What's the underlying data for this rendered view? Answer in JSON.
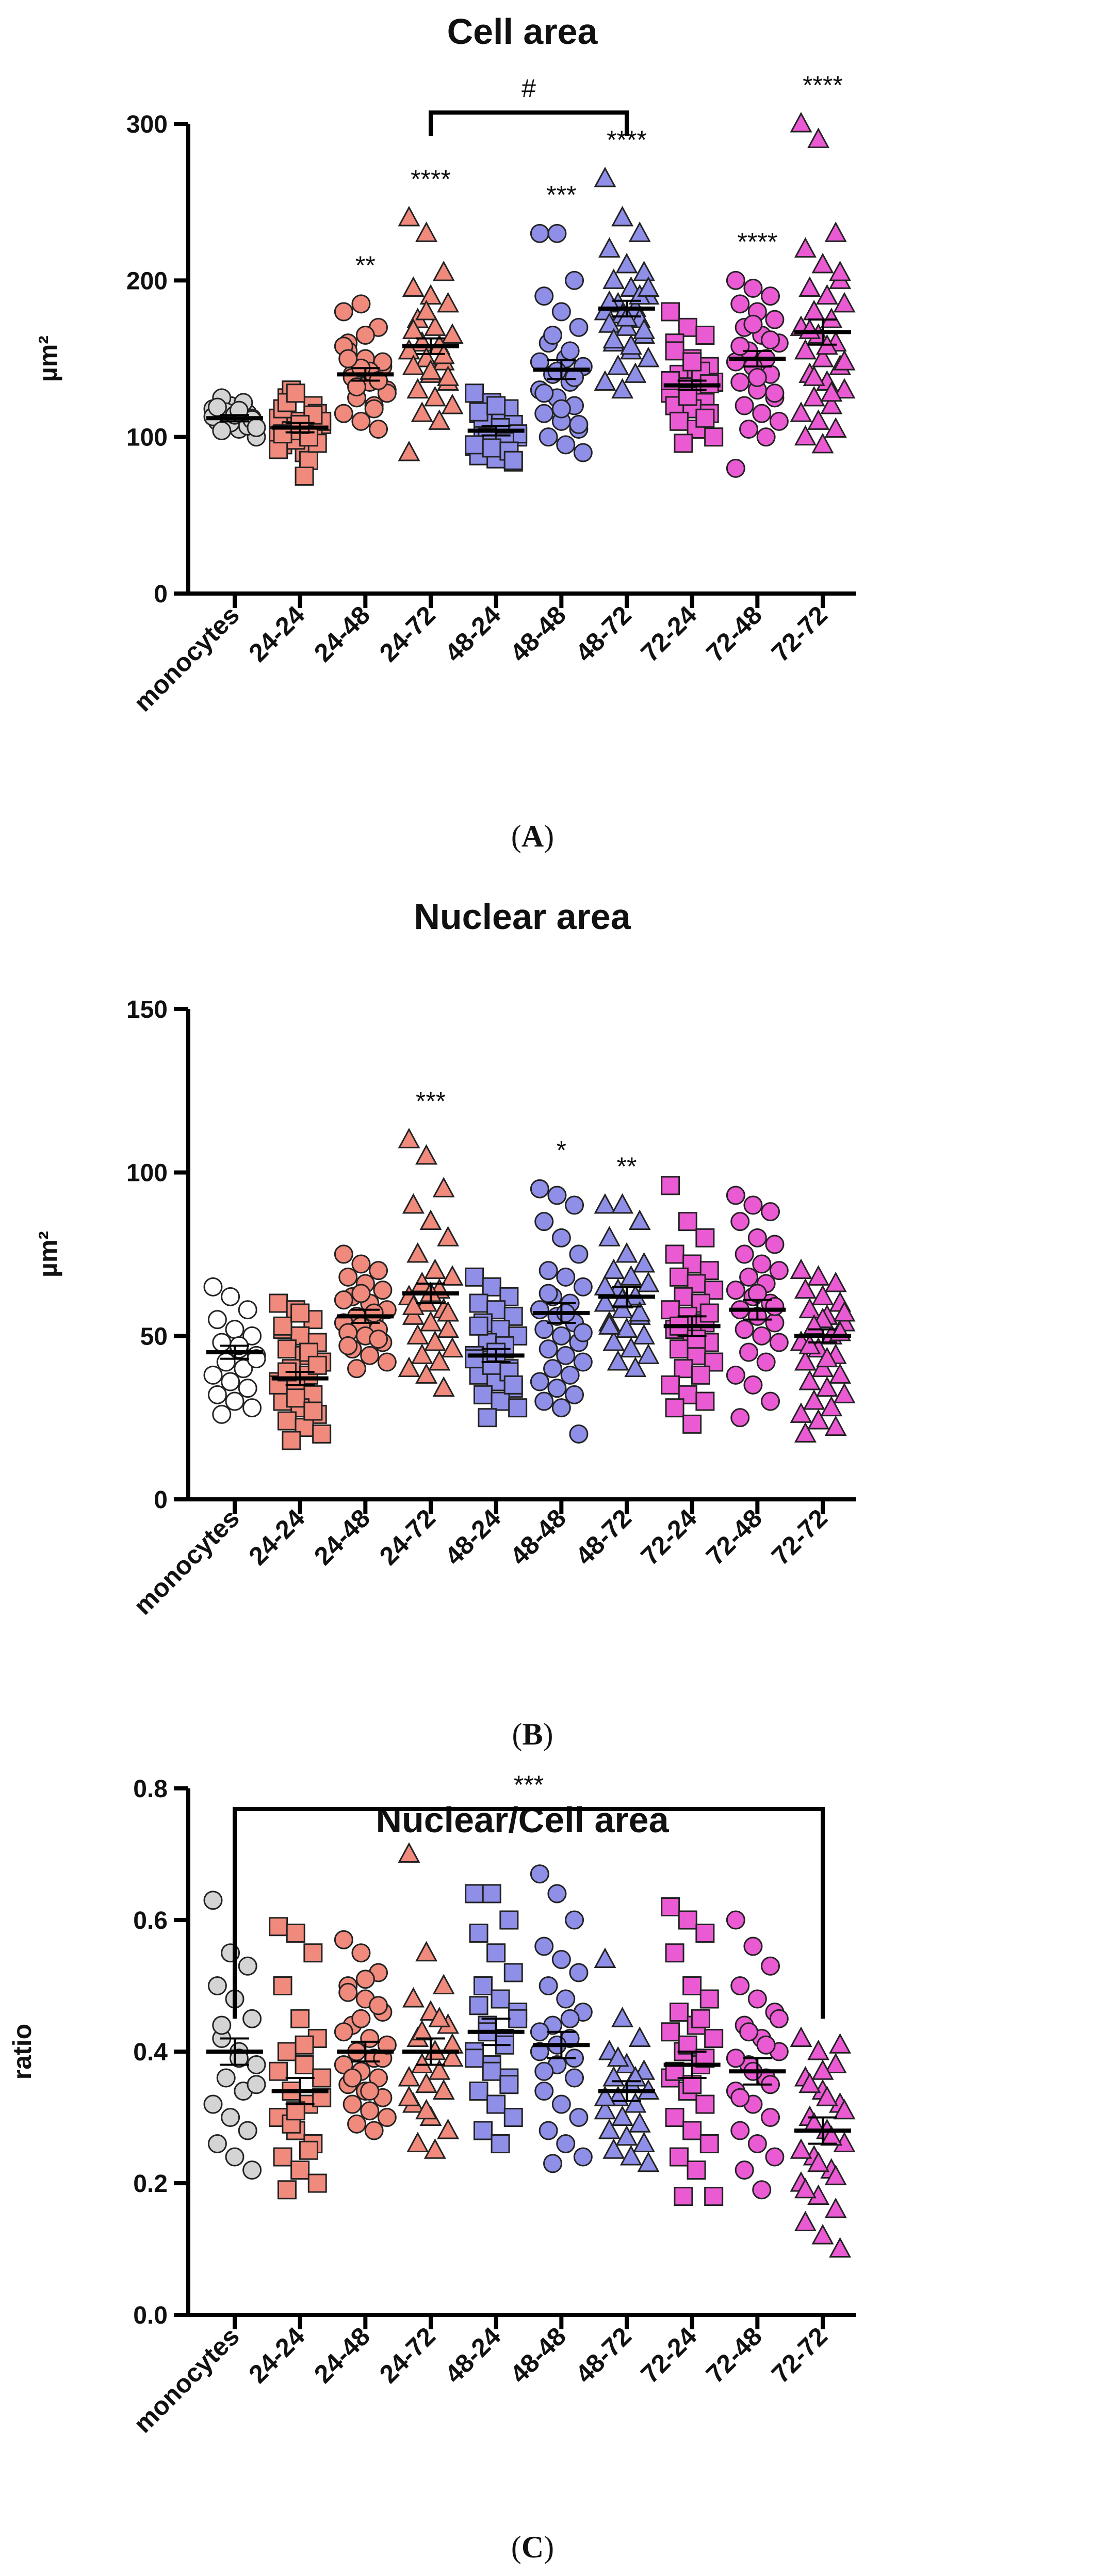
{
  "chart_data": [
    {
      "type": "scatter",
      "id": "A",
      "title": "Cell area",
      "ylabel": "µm²",
      "ylim": [
        0,
        300
      ],
      "yticks": [
        0,
        100,
        200,
        300
      ],
      "panel_label": "A",
      "categories": [
        "monocytes",
        "24-24",
        "24-48",
        "24-72",
        "48-24",
        "48-48",
        "48-72",
        "72-24",
        "72-48",
        "72-72"
      ],
      "colors": [
        "#d4d4d4",
        "#ef8a7c",
        "#ef8a7c",
        "#ef8a7c",
        "#8f8fe8",
        "#8f8fe8",
        "#8f8fe8",
        "#ea5ad2",
        "#ea5ad2",
        "#ea5ad2"
      ],
      "shapes": [
        "circle",
        "square",
        "circle",
        "triangle",
        "square",
        "circle",
        "triangle",
        "square",
        "circle",
        "triangle"
      ],
      "means": [
        112,
        106,
        140,
        158,
        104,
        143,
        182,
        133,
        150,
        167
      ],
      "sems": [
        2,
        3,
        4,
        5,
        3,
        6,
        5,
        3,
        5,
        8
      ],
      "significance": [
        "",
        "",
        "**",
        "****",
        "",
        "***",
        "****",
        "",
        "****",
        "****"
      ],
      "brackets": [
        {
          "from": 3,
          "to": 6,
          "label": "#"
        }
      ],
      "points": [
        [
          118,
          120,
          115,
          110,
          108,
          112,
          125,
          105,
          100,
          116,
          122,
          113,
          109,
          107,
          119,
          114,
          111,
          104,
          117,
          106
        ],
        [
          100,
          110,
          120,
          95,
          105,
          115,
          125,
          90,
          108,
          130,
          85,
          112,
          98,
          102,
          118,
          106,
          96,
          122,
          75,
          110,
          104,
          100,
          92,
          128,
          114,
          102,
          108
        ],
        [
          180,
          185,
          170,
          160,
          150,
          145,
          140,
          135,
          130,
          125,
          120,
          115,
          110,
          105,
          155,
          165,
          148,
          138,
          142,
          128,
          132,
          118,
          158,
          144,
          136,
          150
        ],
        [
          240,
          230,
          205,
          195,
          190,
          185,
          175,
          170,
          165,
          160,
          158,
          155,
          150,
          148,
          145,
          140,
          135,
          130,
          125,
          120,
          115,
          110,
          90,
          180,
          152,
          168,
          142,
          138
        ],
        [
          128,
          122,
          118,
          115,
          110,
          108,
          105,
          103,
          100,
          98,
          96,
          94,
          92,
          90,
          88,
          86,
          84,
          112,
          106,
          102,
          100,
          97,
          95,
          93,
          91,
          116,
          120,
          85
        ],
        [
          230,
          230,
          200,
          190,
          180,
          170,
          160,
          150,
          145,
          140,
          135,
          130,
          125,
          120,
          115,
          110,
          105,
          100,
          95,
          90,
          165,
          155,
          148,
          142,
          138,
          128,
          118,
          108
        ],
        [
          265,
          240,
          230,
          220,
          210,
          205,
          200,
          195,
          190,
          185,
          182,
          180,
          178,
          175,
          172,
          170,
          165,
          160,
          155,
          150,
          145,
          140,
          135,
          130,
          190,
          186,
          176,
          168,
          162,
          158,
          195
        ],
        [
          180,
          170,
          165,
          160,
          150,
          145,
          140,
          138,
          135,
          132,
          130,
          128,
          125,
          122,
          120,
          118,
          115,
          110,
          105,
          100,
          96,
          142,
          136,
          126,
          112,
          155,
          148,
          134
        ],
        [
          200,
          195,
          190,
          185,
          180,
          175,
          170,
          165,
          160,
          155,
          150,
          148,
          145,
          140,
          135,
          130,
          125,
          120,
          115,
          110,
          105,
          100,
          80,
          172,
          162,
          158,
          138,
          128
        ],
        [
          300,
          290,
          230,
          220,
          210,
          200,
          195,
          190,
          185,
          180,
          175,
          170,
          165,
          160,
          155,
          150,
          145,
          140,
          135,
          130,
          125,
          120,
          115,
          110,
          105,
          100,
          95,
          205,
          168,
          158,
          148,
          138,
          128
        ]
      ]
    },
    {
      "type": "scatter",
      "id": "B",
      "title": "Nuclear area",
      "ylabel": "µm²",
      "ylim": [
        0,
        150
      ],
      "yticks": [
        0,
        50,
        100,
        150
      ],
      "panel_label": "B",
      "categories": [
        "monocytes",
        "24-24",
        "24-48",
        "24-72",
        "48-24",
        "48-48",
        "48-72",
        "72-24",
        "72-48",
        "72-72"
      ],
      "colors": [
        "#ffffff",
        "#ef8a7c",
        "#ef8a7c",
        "#ef8a7c",
        "#8f8fe8",
        "#8f8fe8",
        "#8f8fe8",
        "#ea5ad2",
        "#ea5ad2",
        "#ea5ad2"
      ],
      "shapes": [
        "circle",
        "square",
        "circle",
        "triangle",
        "square",
        "circle",
        "triangle",
        "square",
        "circle",
        "triangle"
      ],
      "means": [
        45,
        37,
        56,
        63,
        44,
        57,
        62,
        53,
        58,
        50
      ],
      "sems": [
        2,
        2,
        2,
        3,
        2,
        3,
        3,
        3,
        3,
        2
      ],
      "significance": [
        "",
        "",
        "",
        "***",
        "",
        "*",
        "**",
        "",
        "",
        ""
      ],
      "brackets": [],
      "points": [
        [
          65,
          62,
          58,
          55,
          52,
          50,
          48,
          46,
          44,
          42,
          40,
          38,
          36,
          34,
          32,
          30,
          28,
          26,
          47,
          43
        ],
        [
          60,
          58,
          55,
          52,
          50,
          48,
          46,
          44,
          42,
          40,
          38,
          36,
          34,
          32,
          30,
          28,
          26,
          24,
          22,
          20,
          18,
          45,
          35,
          31,
          27,
          53,
          57,
          41,
          39
        ],
        [
          75,
          72,
          70,
          68,
          66,
          64,
          62,
          60,
          58,
          56,
          55,
          54,
          53,
          52,
          51,
          50,
          48,
          46,
          44,
          42,
          40,
          57,
          61,
          63,
          49,
          47
        ],
        [
          110,
          105,
          95,
          90,
          85,
          80,
          75,
          70,
          68,
          66,
          64,
          62,
          60,
          58,
          56,
          54,
          52,
          50,
          48,
          46,
          44,
          42,
          40,
          38,
          34,
          59,
          63,
          57
        ],
        [
          68,
          65,
          62,
          60,
          58,
          56,
          54,
          52,
          50,
          48,
          46,
          44,
          42,
          40,
          38,
          36,
          34,
          32,
          30,
          28,
          25,
          47,
          43,
          41,
          39,
          53,
          45,
          35
        ],
        [
          95,
          93,
          90,
          85,
          80,
          75,
          70,
          68,
          65,
          62,
          60,
          58,
          56,
          54,
          52,
          50,
          48,
          46,
          44,
          42,
          40,
          38,
          36,
          34,
          32,
          30,
          28,
          20,
          63,
          57,
          51
        ],
        [
          90,
          90,
          85,
          80,
          75,
          72,
          70,
          68,
          66,
          64,
          62,
          60,
          58,
          56,
          54,
          52,
          50,
          48,
          46,
          44,
          42,
          40,
          65,
          61,
          57,
          53
        ],
        [
          96,
          85,
          80,
          75,
          72,
          70,
          68,
          66,
          64,
          62,
          60,
          58,
          56,
          54,
          52,
          50,
          48,
          46,
          44,
          42,
          40,
          38,
          35,
          32,
          30,
          28,
          23,
          57,
          53,
          49
        ],
        [
          93,
          90,
          88,
          85,
          80,
          78,
          75,
          72,
          70,
          68,
          66,
          64,
          62,
          60,
          58,
          56,
          54,
          52,
          50,
          48,
          45,
          42,
          38,
          35,
          30,
          25,
          63,
          59
        ],
        [
          70,
          68,
          66,
          64,
          62,
          60,
          58,
          56,
          54,
          52,
          50,
          48,
          46,
          44,
          42,
          40,
          38,
          36,
          34,
          32,
          30,
          28,
          26,
          24,
          22,
          20,
          55,
          51,
          47,
          43,
          57,
          53
        ]
      ]
    },
    {
      "type": "scatter",
      "id": "C",
      "title": "Nuclear/Cell area",
      "ylabel": "ratio",
      "ylim": [
        0,
        0.8
      ],
      "yticks": [
        "0.0",
        "0.2",
        "0.4",
        "0.6",
        "0.8"
      ],
      "panel_label": "C",
      "categories": [
        "monocytes",
        "24-24",
        "24-48",
        "24-72",
        "48-24",
        "48-48",
        "48-72",
        "72-24",
        "72-48",
        "72-72"
      ],
      "colors": [
        "#d4d4d4",
        "#ef8a7c",
        "#ef8a7c",
        "#ef8a7c",
        "#8f8fe8",
        "#8f8fe8",
        "#8f8fe8",
        "#ea5ad2",
        "#ea5ad2",
        "#ea5ad2"
      ],
      "shapes": [
        "circle",
        "square",
        "circle",
        "triangle",
        "square",
        "circle",
        "triangle",
        "square",
        "circle",
        "triangle"
      ],
      "means": [
        0.4,
        0.34,
        0.4,
        0.4,
        0.43,
        0.41,
        0.34,
        0.38,
        0.37,
        0.28
      ],
      "sems": [
        0.02,
        0.02,
        0.015,
        0.02,
        0.02,
        0.02,
        0.015,
        0.02,
        0.02,
        0.02
      ],
      "significance": [
        "",
        "",
        "",
        "",
        "",
        "",
        "",
        "",
        "",
        ""
      ],
      "brackets": [
        {
          "from": 0,
          "to": 9,
          "label": "***"
        }
      ],
      "points": [
        [
          0.63,
          0.55,
          0.53,
          0.5,
          0.48,
          0.45,
          0.42,
          0.4,
          0.38,
          0.36,
          0.34,
          0.32,
          0.3,
          0.28,
          0.26,
          0.24,
          0.22,
          0.44,
          0.39,
          0.35
        ],
        [
          0.59,
          0.58,
          0.55,
          0.5,
          0.45,
          0.42,
          0.4,
          0.38,
          0.36,
          0.34,
          0.32,
          0.3,
          0.28,
          0.26,
          0.24,
          0.22,
          0.2,
          0.19,
          0.41,
          0.33,
          0.29,
          0.25,
          0.37,
          0.31
        ],
        [
          0.57,
          0.55,
          0.52,
          0.5,
          0.48,
          0.46,
          0.44,
          0.42,
          0.41,
          0.4,
          0.39,
          0.38,
          0.37,
          0.36,
          0.35,
          0.34,
          0.33,
          0.32,
          0.31,
          0.3,
          0.29,
          0.28,
          0.43,
          0.45,
          0.47,
          0.49,
          0.51,
          0.39,
          0.36,
          0.34,
          0.41
        ],
        [
          0.7,
          0.55,
          0.5,
          0.48,
          0.46,
          0.44,
          0.42,
          0.4,
          0.39,
          0.38,
          0.37,
          0.36,
          0.35,
          0.34,
          0.32,
          0.3,
          0.28,
          0.26,
          0.25,
          0.41,
          0.43,
          0.45,
          0.33,
          0.31
        ],
        [
          0.64,
          0.64,
          0.6,
          0.58,
          0.55,
          0.52,
          0.5,
          0.48,
          0.46,
          0.44,
          0.42,
          0.4,
          0.38,
          0.36,
          0.34,
          0.32,
          0.3,
          0.28,
          0.26,
          0.45,
          0.43,
          0.41,
          0.39,
          0.37,
          0.35,
          0.47
        ],
        [
          0.67,
          0.64,
          0.6,
          0.56,
          0.54,
          0.52,
          0.5,
          0.48,
          0.46,
          0.44,
          0.42,
          0.4,
          0.38,
          0.36,
          0.34,
          0.32,
          0.3,
          0.28,
          0.26,
          0.24,
          0.23,
          0.45,
          0.43,
          0.41,
          0.39,
          0.37
        ],
        [
          0.54,
          0.45,
          0.42,
          0.4,
          0.38,
          0.37,
          0.36,
          0.35,
          0.34,
          0.33,
          0.32,
          0.31,
          0.3,
          0.29,
          0.28,
          0.27,
          0.26,
          0.25,
          0.24,
          0.23,
          0.39,
          0.36,
          0.33
        ],
        [
          0.62,
          0.6,
          0.58,
          0.55,
          0.5,
          0.48,
          0.46,
          0.44,
          0.42,
          0.4,
          0.38,
          0.36,
          0.34,
          0.32,
          0.3,
          0.28,
          0.26,
          0.24,
          0.22,
          0.18,
          0.18,
          0.45,
          0.43,
          0.41,
          0.39,
          0.37,
          0.35
        ],
        [
          0.6,
          0.56,
          0.53,
          0.5,
          0.48,
          0.46,
          0.44,
          0.42,
          0.4,
          0.38,
          0.36,
          0.34,
          0.32,
          0.3,
          0.28,
          0.26,
          0.24,
          0.22,
          0.19,
          0.45,
          0.43,
          0.41,
          0.39,
          0.37,
          0.35,
          0.33
        ],
        [
          0.42,
          0.4,
          0.38,
          0.36,
          0.34,
          0.32,
          0.3,
          0.28,
          0.26,
          0.24,
          0.22,
          0.2,
          0.18,
          0.16,
          0.14,
          0.12,
          0.1,
          0.35,
          0.33,
          0.31,
          0.29,
          0.27,
          0.25,
          0.23,
          0.21,
          0.19,
          0.37,
          0.41
        ]
      ]
    }
  ]
}
